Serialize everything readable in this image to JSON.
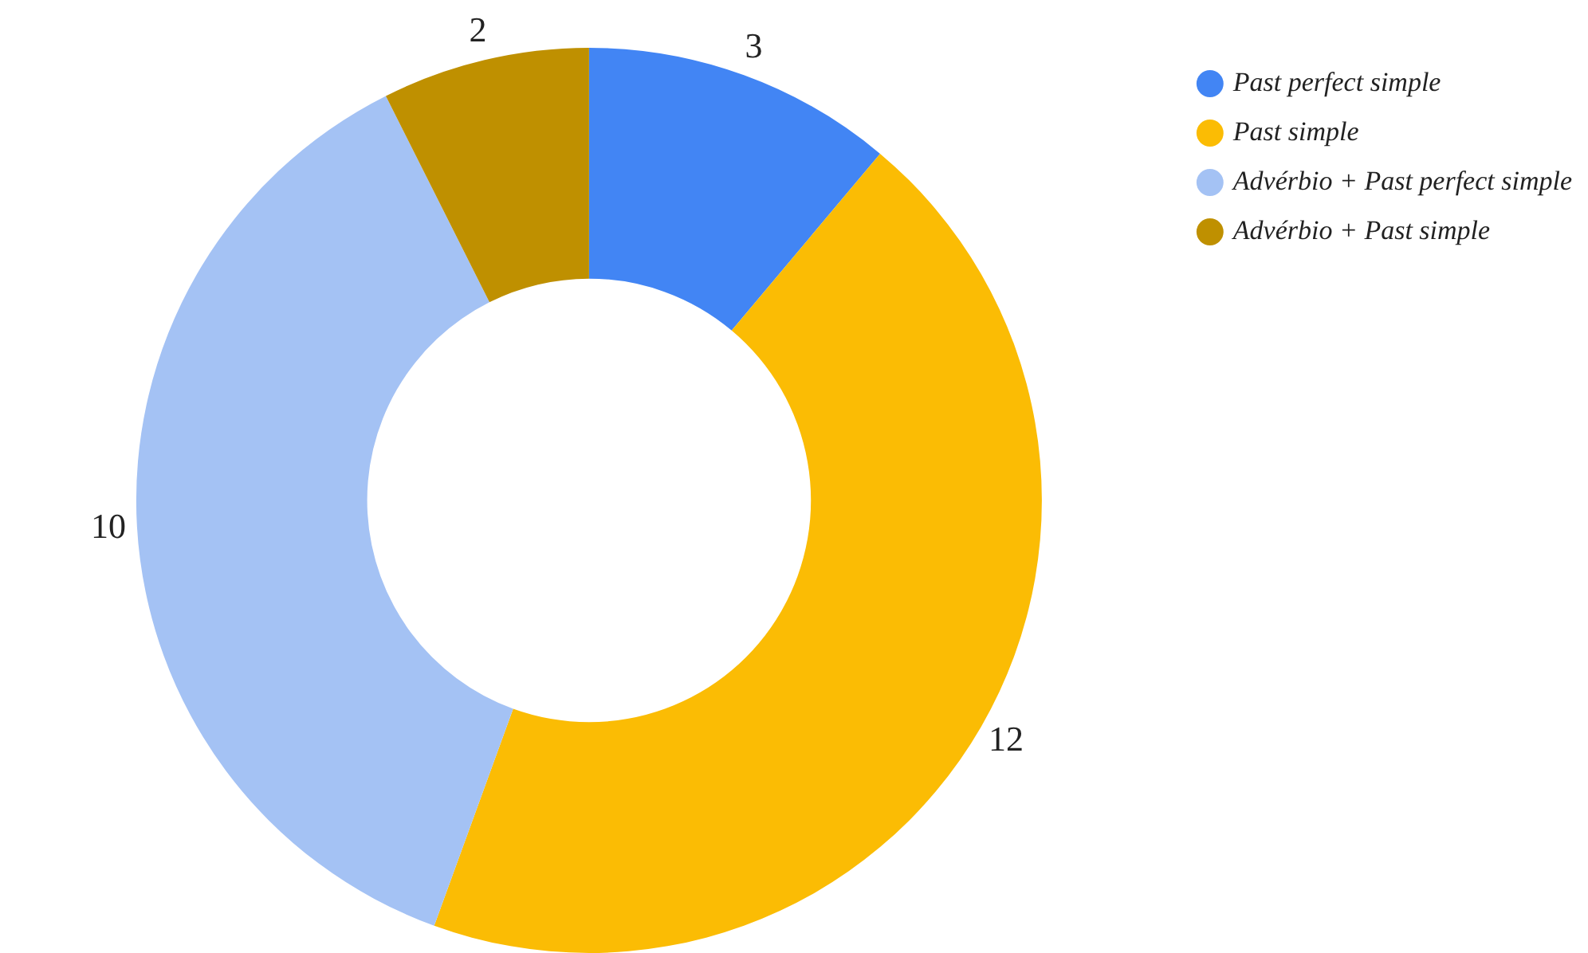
{
  "chart_data": {
    "type": "donut",
    "categories": [
      "Past perfect simple",
      "Past simple",
      "Advérbio + Past perfect simple",
      "Advérbio + Past simple"
    ],
    "values": [
      3,
      12,
      10,
      2
    ],
    "colors": [
      "#4285f4",
      "#fbbc04",
      "#a4c2f4",
      "#bf9000"
    ],
    "data_labels": true,
    "legend": "top right"
  }
}
